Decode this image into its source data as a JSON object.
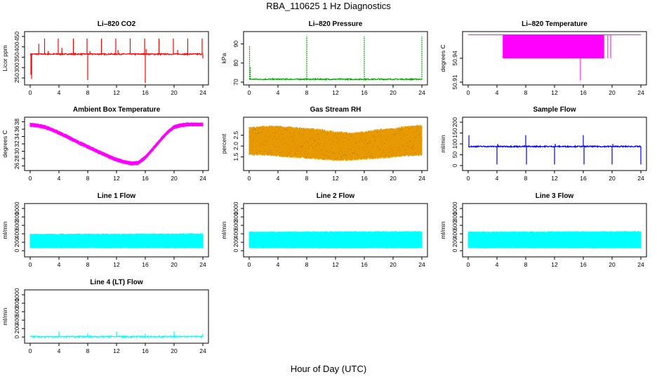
{
  "figure": {
    "title": "RBA_110625  1 Hz Diagnostics",
    "xlabel": "Hour of Day (UTC)"
  },
  "colors": {
    "red": "#ff0000",
    "green": "#00aa00",
    "magenta": "#ff00ff",
    "orange": "#e69900",
    "blue": "#0000ff",
    "cyan": "#00ffff"
  },
  "chart_data": [
    {
      "id": "co2",
      "type": "line",
      "title": "Li–820 CO2",
      "ylabel": "Licor ppm",
      "color": "#ff0000",
      "xlim": [
        0,
        24
      ],
      "ylim": [
        230,
        460
      ],
      "xticks": [
        "0",
        "4",
        "8",
        "12",
        "16",
        "20",
        "24"
      ],
      "yticks": [
        "250",
        "300",
        "350",
        "400",
        "450"
      ],
      "baseline": 365,
      "spikes": [
        [
          0.1,
          265
        ],
        [
          0.2,
          245
        ],
        [
          1.2,
          415
        ],
        [
          2.0,
          440
        ],
        [
          2.5,
          380
        ],
        [
          3.9,
          440
        ],
        [
          4.4,
          395
        ],
        [
          6.0,
          440
        ],
        [
          7.9,
          440
        ],
        [
          8.0,
          240
        ],
        [
          8.3,
          380
        ],
        [
          9.9,
          440
        ],
        [
          11.9,
          440
        ],
        [
          12.2,
          385
        ],
        [
          13.9,
          440
        ],
        [
          15.9,
          440
        ],
        [
          16.0,
          225
        ],
        [
          16.1,
          390
        ],
        [
          17.9,
          440
        ],
        [
          19.9,
          440
        ],
        [
          20.5,
          385
        ],
        [
          21.9,
          440
        ],
        [
          23.9,
          440
        ],
        [
          24.0,
          345
        ]
      ]
    },
    {
      "id": "pressure",
      "type": "line",
      "title": "Li–820 Pressure",
      "ylabel": "kPa",
      "color": "#00aa00",
      "xlim": [
        0,
        24
      ],
      "ylim": [
        70,
        95
      ],
      "xticks": [
        "0",
        "4",
        "8",
        "12",
        "16",
        "20",
        "24"
      ],
      "yticks": [
        "70",
        "80",
        "90"
      ],
      "baseline": 71.5,
      "spikes": [
        [
          0.05,
          89
        ],
        [
          0.15,
          78
        ],
        [
          8.0,
          94
        ],
        [
          16.0,
          94
        ],
        [
          24.0,
          94
        ]
      ]
    },
    {
      "id": "licor-temp",
      "type": "line",
      "title": "Li–820 Temperature",
      "ylabel": "degrees C",
      "color": "#ff00ff",
      "xlim": [
        0,
        24
      ],
      "ylim": [
        50.91,
        50.97
      ],
      "xticks": [
        "0",
        "4",
        "8",
        "12",
        "16",
        "20",
        "24"
      ],
      "yticks": [
        "50.91",
        "50.94"
      ],
      "band": {
        "x": [
          4.8,
          18.9
        ],
        "low": 50.94,
        "high": 50.9695
      },
      "spikes": [
        [
          15.6,
          50.912
        ],
        [
          19.4,
          50.94
        ],
        [
          19.8,
          50.94
        ]
      ],
      "baseline": 50.9695
    },
    {
      "id": "ambient-temp",
      "type": "line",
      "title": "Ambient Box Temperature",
      "ylabel": "degrees C",
      "color": "#ff00ff",
      "xlim": [
        0,
        24
      ],
      "ylim": [
        25.5,
        38.5
      ],
      "xticks": [
        "0",
        "4",
        "8",
        "12",
        "16",
        "20",
        "24"
      ],
      "yticks": [
        "26",
        "28",
        "30",
        "32",
        "34",
        "36",
        "38"
      ],
      "x": [
        0,
        1,
        2,
        3,
        4,
        5,
        6,
        7,
        8,
        9,
        10,
        11,
        12,
        13,
        14,
        15,
        16,
        17,
        18,
        19,
        20,
        21,
        22,
        23,
        24
      ],
      "y": [
        37.2,
        37.0,
        36.6,
        35.9,
        35.0,
        34.1,
        33.1,
        32.1,
        31.2,
        30.3,
        29.4,
        28.5,
        27.7,
        27.1,
        26.7,
        26.8,
        28.3,
        30.5,
        32.8,
        35.0,
        36.6,
        37.1,
        37.3,
        37.3,
        37.3
      ],
      "spread": 0.7
    },
    {
      "id": "rh",
      "type": "band",
      "title": "Gas Stream RH",
      "ylabel": "percent",
      "color": "#e69900",
      "xlim": [
        0,
        24
      ],
      "ylim": [
        1.0,
        3.2
      ],
      "xticks": [
        "0",
        "4",
        "8",
        "12",
        "16",
        "20",
        "24"
      ],
      "yticks": [
        "1.5",
        "2.0",
        "2.5"
      ],
      "x": [
        0,
        2,
        4,
        6,
        8,
        10,
        12,
        14,
        16,
        18,
        20,
        22,
        24
      ],
      "low": [
        1.65,
        1.65,
        1.6,
        1.55,
        1.5,
        1.45,
        1.4,
        1.4,
        1.45,
        1.5,
        1.55,
        1.6,
        1.65
      ],
      "high": [
        2.8,
        2.85,
        2.85,
        2.8,
        2.75,
        2.7,
        2.6,
        2.55,
        2.6,
        2.7,
        2.75,
        2.85,
        2.9
      ]
    },
    {
      "id": "sample-flow",
      "type": "line",
      "title": "Sample Flow",
      "ylabel": "ml/min",
      "color": "#0000ff",
      "xlim": [
        0,
        24
      ],
      "ylim": [
        -10,
        210
      ],
      "xticks": [
        "0",
        "4",
        "8",
        "12",
        "16",
        "20",
        "24"
      ],
      "yticks": [
        "0",
        "50",
        "100",
        "150",
        "200"
      ],
      "baseline": 88,
      "spikes": [
        [
          0.1,
          140
        ],
        [
          4.0,
          5
        ],
        [
          4.1,
          100
        ],
        [
          8.0,
          140
        ],
        [
          8.1,
          5
        ],
        [
          12.0,
          5
        ],
        [
          12.1,
          100
        ],
        [
          16.0,
          140
        ],
        [
          16.1,
          5
        ],
        [
          20.0,
          5
        ],
        [
          20.1,
          100
        ],
        [
          24.0,
          5
        ]
      ]
    },
    {
      "id": "line1-flow",
      "type": "band",
      "title": "Line 1 Flow",
      "ylabel": "ml/min",
      "color": "#00ffff",
      "xlim": [
        0,
        24
      ],
      "ylim": [
        -80,
        1050
      ],
      "xticks": [
        "0",
        "4",
        "8",
        "12",
        "16",
        "20",
        "24"
      ],
      "yticks": [
        "0",
        "200",
        "400",
        "600",
        "800",
        "1000"
      ],
      "x": [
        0,
        24
      ],
      "low": [
        80,
        80
      ],
      "high": [
        380,
        390
      ]
    },
    {
      "id": "line2-flow",
      "type": "band",
      "title": "Line 2 Flow",
      "ylabel": "ml/min",
      "color": "#00ffff",
      "xlim": [
        0,
        24
      ],
      "ylim": [
        -80,
        1050
      ],
      "xticks": [
        "0",
        "4",
        "8",
        "12",
        "16",
        "20",
        "24"
      ],
      "yticks": [
        "0",
        "200",
        "400",
        "600",
        "800",
        "1000"
      ],
      "x": [
        0,
        24
      ],
      "low": [
        80,
        80
      ],
      "high": [
        430,
        440
      ]
    },
    {
      "id": "line3-flow",
      "type": "band",
      "title": "Line 3 Flow",
      "ylabel": "ml/min",
      "color": "#00ffff",
      "xlim": [
        0,
        24
      ],
      "ylim": [
        -80,
        1050
      ],
      "xticks": [
        "0",
        "4",
        "8",
        "12",
        "16",
        "20",
        "24"
      ],
      "yticks": [
        "0",
        "200",
        "400",
        "600",
        "800",
        "1000"
      ],
      "x": [
        0,
        24
      ],
      "low": [
        80,
        80
      ],
      "high": [
        430,
        440
      ]
    },
    {
      "id": "line4-flow",
      "type": "line",
      "title": "Line 4 (LT) Flow",
      "ylabel": "ml/min",
      "color": "#00ffff",
      "xlim": [
        0,
        24
      ],
      "ylim": [
        -80,
        1050
      ],
      "xticks": [
        "0",
        "4",
        "8",
        "12",
        "16",
        "20",
        "24"
      ],
      "yticks": [
        "0",
        "200",
        "400",
        "600",
        "800",
        "1000"
      ],
      "baseline": 10,
      "spikes": [
        [
          4.0,
          130
        ],
        [
          8.0,
          90
        ],
        [
          12.0,
          130
        ],
        [
          14.0,
          -30
        ],
        [
          16.0,
          80
        ],
        [
          18.5,
          -20
        ],
        [
          20.0,
          130
        ],
        [
          24.0,
          80
        ]
      ]
    }
  ]
}
